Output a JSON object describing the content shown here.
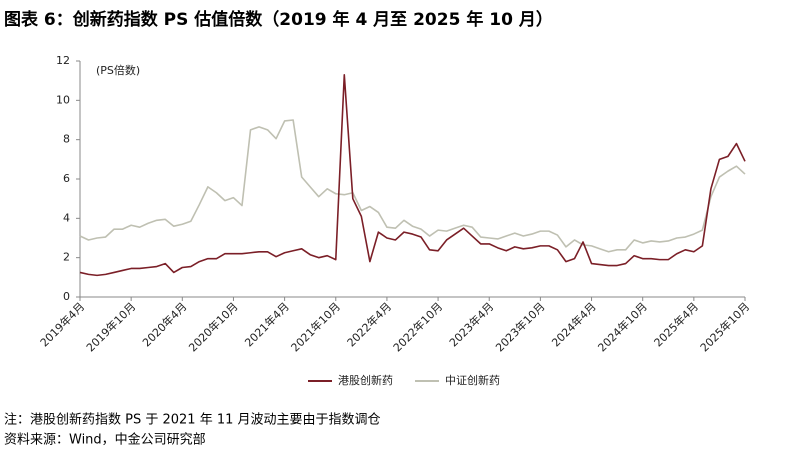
{
  "chart_data": {
    "type": "line",
    "title": "图表 6：创新药指数 PS 估值倍数（2019 年 4 月至 2025 年 10 月）",
    "y_label": "(PS倍数)",
    "note": "注：港股创新药指数 PS 于 2021 年 11 月波动主要由于指数调仓",
    "source": "资料来源：Wind，中金公司研究部",
    "categories": [
      "2019年4月",
      null,
      null,
      null,
      null,
      null,
      "2019年10月",
      null,
      null,
      null,
      null,
      null,
      "2020年4月",
      null,
      null,
      null,
      null,
      null,
      "2020年10月",
      null,
      null,
      null,
      null,
      null,
      "2021年4月",
      null,
      null,
      null,
      null,
      null,
      "2021年10月",
      null,
      null,
      null,
      null,
      null,
      "2022年4月",
      null,
      null,
      null,
      null,
      null,
      "2022年10月",
      null,
      null,
      null,
      null,
      null,
      "2023年4月",
      null,
      null,
      null,
      null,
      null,
      "2023年10月",
      null,
      null,
      null,
      null,
      null,
      "2024年4月",
      null,
      null,
      null,
      null,
      null,
      "2024年10月",
      null,
      null,
      null,
      null,
      null,
      "2025年4月",
      null,
      null,
      null,
      null,
      null,
      "2025年10月"
    ],
    "series": [
      {
        "name": "港股创新药",
        "color": "#7b1f27",
        "values": [
          1.25,
          1.15,
          1.1,
          1.15,
          1.25,
          1.35,
          1.45,
          1.45,
          1.5,
          1.55,
          1.7,
          1.25,
          1.5,
          1.55,
          1.8,
          1.95,
          1.95,
          2.2,
          2.2,
          2.2,
          2.25,
          2.3,
          2.3,
          2.05,
          2.25,
          2.35,
          2.45,
          2.15,
          2.0,
          2.1,
          1.9,
          11.3,
          5.0,
          4.1,
          1.8,
          3.3,
          3.0,
          2.9,
          3.3,
          3.2,
          3.05,
          2.4,
          2.35,
          2.9,
          3.2,
          3.5,
          3.1,
          2.7,
          2.7,
          2.5,
          2.35,
          2.55,
          2.45,
          2.5,
          2.6,
          2.6,
          2.4,
          1.8,
          1.95,
          2.8,
          1.7,
          1.65,
          1.6,
          1.6,
          1.7,
          2.1,
          1.95,
          1.95,
          1.9,
          1.9,
          2.2,
          2.4,
          2.3,
          2.6,
          5.5,
          7.0,
          7.15,
          7.8,
          6.9
        ]
      },
      {
        "name": "中证创新药",
        "color": "#bfc0b2",
        "values": [
          3.1,
          2.9,
          3.0,
          3.05,
          3.45,
          3.45,
          3.65,
          3.55,
          3.75,
          3.9,
          3.95,
          3.6,
          3.7,
          3.85,
          4.7,
          5.6,
          5.3,
          4.9,
          5.05,
          4.65,
          8.5,
          8.65,
          8.5,
          8.05,
          8.95,
          9.0,
          6.1,
          5.6,
          5.1,
          5.5,
          5.25,
          5.2,
          5.3,
          4.4,
          4.6,
          4.3,
          3.55,
          3.5,
          3.9,
          3.6,
          3.45,
          3.1,
          3.4,
          3.35,
          3.5,
          3.65,
          3.55,
          3.05,
          3.0,
          2.95,
          3.1,
          3.25,
          3.1,
          3.2,
          3.35,
          3.35,
          3.15,
          2.55,
          2.9,
          2.65,
          2.6,
          2.45,
          2.3,
          2.4,
          2.4,
          2.9,
          2.75,
          2.85,
          2.8,
          2.85,
          3.0,
          3.05,
          3.2,
          3.4,
          5.1,
          6.1,
          6.4,
          6.65,
          6.25
        ]
      }
    ],
    "ylim": [
      0,
      12
    ],
    "yticks": [
      0,
      2,
      4,
      6,
      8,
      10,
      12
    ],
    "grid": false
  }
}
